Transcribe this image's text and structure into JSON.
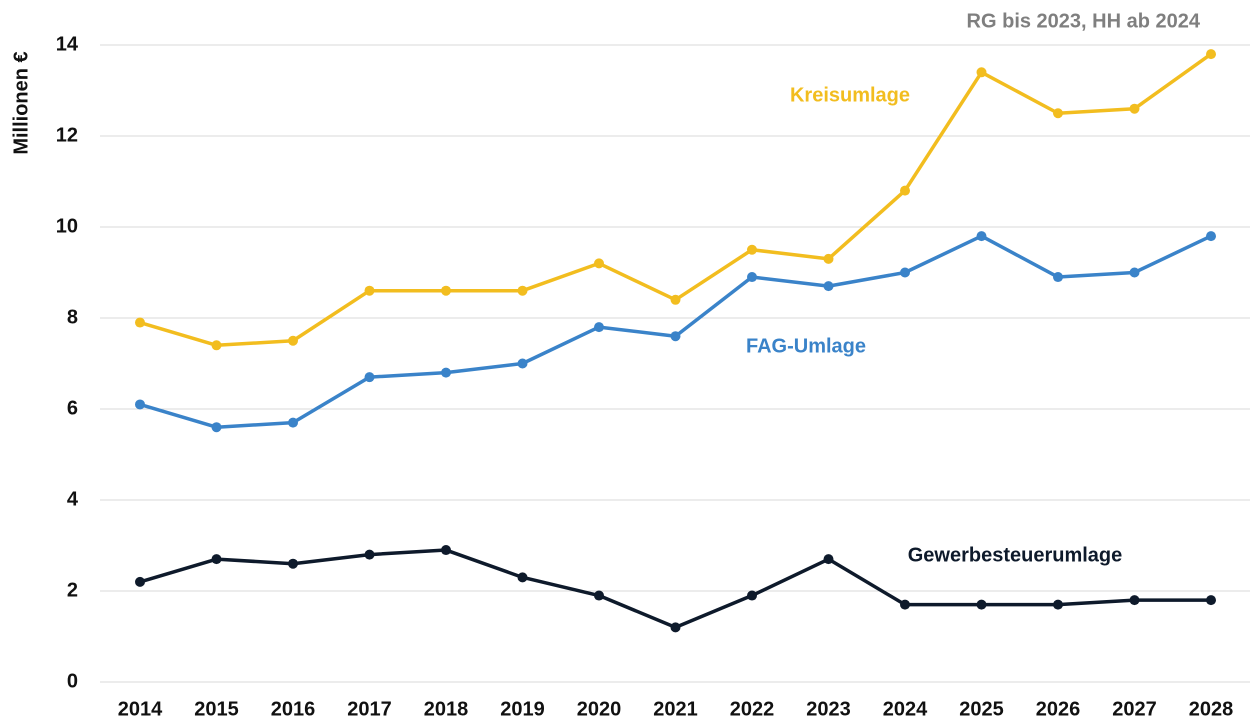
{
  "chart_data": {
    "type": "line",
    "annotation": "RG bis 2023, HH ab 2024",
    "y_label": "Millionen €",
    "categories": [
      "2014",
      "2015",
      "2016",
      "2017",
      "2018",
      "2019",
      "2020",
      "2021",
      "2022",
      "2023",
      "2024",
      "2025",
      "2026",
      "2027",
      "2028"
    ],
    "series": [
      {
        "name": "Kreisumlage",
        "color": "#f2bd1f",
        "values": [
          7.9,
          7.4,
          7.5,
          8.6,
          8.6,
          8.6,
          9.2,
          8.4,
          9.5,
          9.3,
          10.8,
          13.4,
          12.5,
          12.6,
          13.8
        ]
      },
      {
        "name": "FAG-Umlage",
        "color": "#3a83c9",
        "values": [
          6.1,
          5.6,
          5.7,
          6.7,
          6.8,
          7.0,
          7.8,
          7.6,
          8.9,
          8.7,
          9.0,
          9.8,
          8.9,
          9.0,
          9.8
        ]
      },
      {
        "name": "Gewerbesteuerumlage",
        "color": "#0e1a2b",
        "values": [
          2.2,
          2.7,
          2.6,
          2.8,
          2.9,
          2.3,
          1.9,
          1.2,
          1.9,
          2.7,
          1.7,
          1.7,
          1.7,
          1.8,
          1.8
        ]
      }
    ],
    "ylim": [
      0,
      14
    ],
    "yticks": [
      0,
      2,
      4,
      6,
      8,
      10,
      12,
      14
    ],
    "grid": true
  }
}
